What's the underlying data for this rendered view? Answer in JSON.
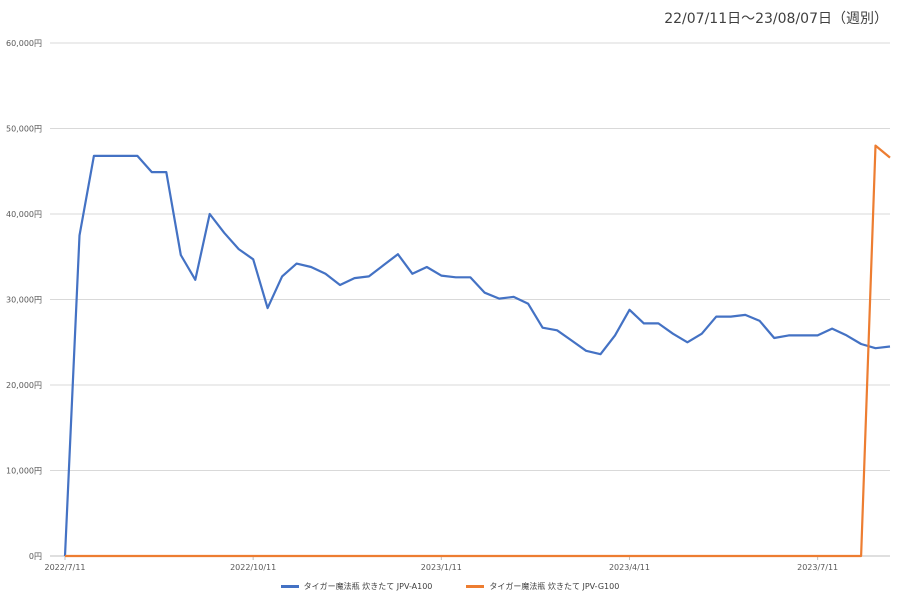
{
  "chart_data": {
    "type": "line",
    "title": "22/07/11日～23/08/07日（週別）",
    "xlabel": "",
    "ylabel": "",
    "x_ticks": [
      "2022/7/11",
      "2022/10/11",
      "2023/1/11",
      "2023/4/11",
      "2023/7/11"
    ],
    "y_ticks": [
      "0円",
      "10,000円",
      "20,000円",
      "30,000円",
      "40,000円",
      "50,000円",
      "60,000円"
    ],
    "ylim": [
      0,
      60000
    ],
    "grid": true,
    "legend_position": "bottom",
    "colors": {
      "series_1": "#4472c4",
      "series_2": "#ed7d31",
      "grid": "#d9d9d9",
      "axis": "#bfbfbf"
    },
    "series": [
      {
        "name": "タイガー魔法瓶 炊きたて JPV-A100",
        "values": [
          0,
          37500,
          46800,
          46800,
          46800,
          46800,
          44900,
          44900,
          35200,
          32300,
          40000,
          37800,
          35900,
          34700,
          29000,
          32700,
          34200,
          33800,
          33000,
          31700,
          32500,
          32700,
          34000,
          35300,
          33000,
          33800,
          32800,
          32600,
          32600,
          30800,
          30100,
          30300,
          29500,
          26700,
          26400,
          25200,
          24000,
          23600,
          25800,
          28800,
          27200,
          27200,
          26000,
          25000,
          26000,
          28000,
          28000,
          28200,
          27500,
          25500,
          25800,
          25800,
          25800,
          26600,
          25800,
          24800,
          24300,
          24500
        ]
      },
      {
        "name": "タイガー魔法瓶 炊きたて JPV-G100",
        "values": [
          0,
          0,
          0,
          0,
          0,
          0,
          0,
          0,
          0,
          0,
          0,
          0,
          0,
          0,
          0,
          0,
          0,
          0,
          0,
          0,
          0,
          0,
          0,
          0,
          0,
          0,
          0,
          0,
          0,
          0,
          0,
          0,
          0,
          0,
          0,
          0,
          0,
          0,
          0,
          0,
          0,
          0,
          0,
          0,
          0,
          0,
          0,
          0,
          0,
          0,
          0,
          0,
          0,
          0,
          0,
          0,
          48000,
          46600
        ]
      }
    ]
  }
}
